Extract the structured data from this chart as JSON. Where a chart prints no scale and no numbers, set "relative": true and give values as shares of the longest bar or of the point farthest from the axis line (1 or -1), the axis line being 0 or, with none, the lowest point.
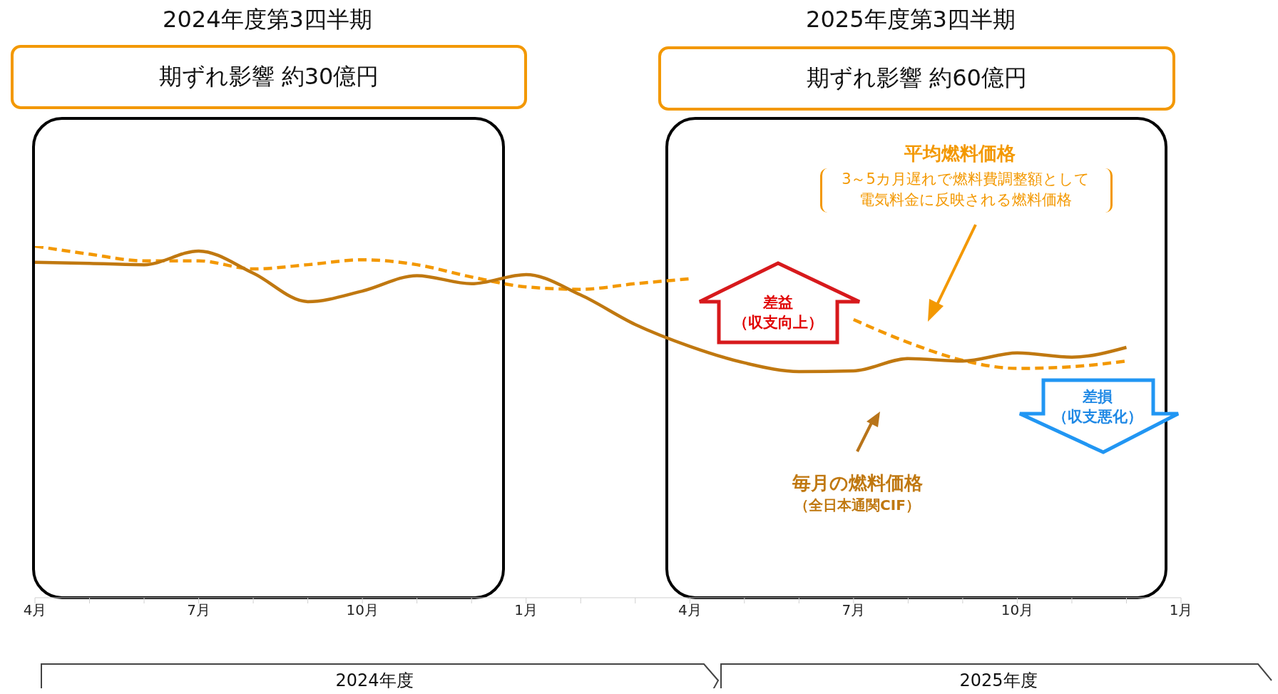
{
  "chart_data": {
    "type": "line",
    "relative": true,
    "marker": "none",
    "categories": [
      "4月",
      null,
      null,
      "7月",
      null,
      null,
      "10月",
      null,
      null,
      "1月",
      null,
      null,
      "4月",
      null,
      null,
      "7月",
      null,
      null,
      "10月",
      null,
      null,
      "1月"
    ],
    "series": [
      {
        "name": "平均燃料価格",
        "color": "#f39800",
        "line_style": "dashed",
        "values": [
          1.0,
          0.977,
          0.958,
          0.958,
          0.935,
          0.947,
          0.961,
          0.947,
          0.912,
          0.884,
          0.877,
          0.893,
          0.907,
          null,
          null,
          0.791,
          0.726,
          0.675,
          0.652,
          0.657,
          0.673,
          null
        ]
      },
      {
        "name": "毎月の燃料価格",
        "color": "#c07810",
        "line_style": "solid",
        "values": [
          0.954,
          0.951,
          0.947,
          0.986,
          0.923,
          0.842,
          0.872,
          0.916,
          0.893,
          0.919,
          0.861,
          0.777,
          0.715,
          0.668,
          0.643,
          0.645,
          0.68,
          0.673,
          0.696,
          0.684,
          0.712,
          null
        ]
      }
    ],
    "annotations": [
      "2024年度第3四半期",
      "2025年度第3四半期",
      "期ずれ影響 約30億円",
      "期ずれ影響 約60億円",
      "差益",
      "（収支向上）",
      "差損",
      "（収支悪化）",
      "3～5カ月遅れで燃料費調整額として電気料金に反映される燃料価格",
      "（全日本通関CIF）",
      "2024年度",
      "2025年度"
    ]
  }
}
